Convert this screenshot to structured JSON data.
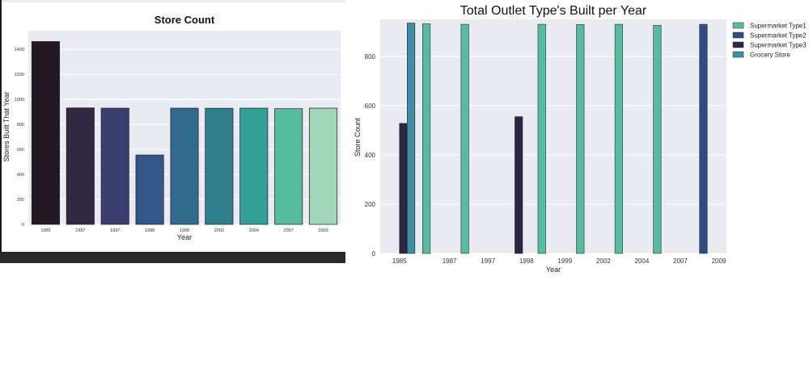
{
  "chart_data": [
    {
      "type": "bar",
      "title": "Store Count",
      "xlabel": "Year",
      "ylabel": "Stores Built That Year",
      "categories": [
        "1985",
        "1987",
        "1997",
        "1998",
        "1999",
        "2002",
        "2004",
        "2007",
        "2009"
      ],
      "values": [
        1463,
        932,
        930,
        555,
        930,
        929,
        930,
        926,
        930
      ],
      "bar_colors": [
        "#241923",
        "#312941",
        "#3c3e6f",
        "#34578a",
        "#316a8d",
        "#2d7f8b",
        "#33a098",
        "#55bc9e",
        "#a1d6b8"
      ],
      "ylim": [
        0,
        1550
      ],
      "yticks": [
        0,
        200,
        400,
        600,
        800,
        1000,
        1200,
        1400
      ],
      "grid": true,
      "legend": "none"
    },
    {
      "type": "bar",
      "title": "Total Outlet Type's Built per Year",
      "xlabel": "Year",
      "ylabel": "Store Count",
      "categories": [
        "1985",
        "1987",
        "1997",
        "1998",
        "1999",
        "2002",
        "2004",
        "2007",
        "2009"
      ],
      "series": [
        {
          "name": "Supermarket Type1",
          "color": "#55bc9e",
          "values": [
            null,
            932,
            930,
            null,
            930,
            929,
            930,
            926,
            null
          ]
        },
        {
          "name": "Supermarket Type2",
          "color": "#2f4d84",
          "values": [
            null,
            null,
            null,
            null,
            null,
            null,
            null,
            null,
            930
          ]
        },
        {
          "name": "Supermarket Type3",
          "color": "#2d2541",
          "values": [
            528,
            null,
            null,
            555,
            null,
            null,
            null,
            null,
            null
          ]
        },
        {
          "name": "Grocery Store",
          "color": "#3d8fa6",
          "values": [
            935,
            null,
            null,
            null,
            null,
            null,
            null,
            null,
            null
          ]
        }
      ],
      "ylim": [
        0,
        950
      ],
      "yticks": [
        0,
        200,
        400,
        600,
        800
      ],
      "grid": true,
      "legend": "top-right"
    }
  ]
}
